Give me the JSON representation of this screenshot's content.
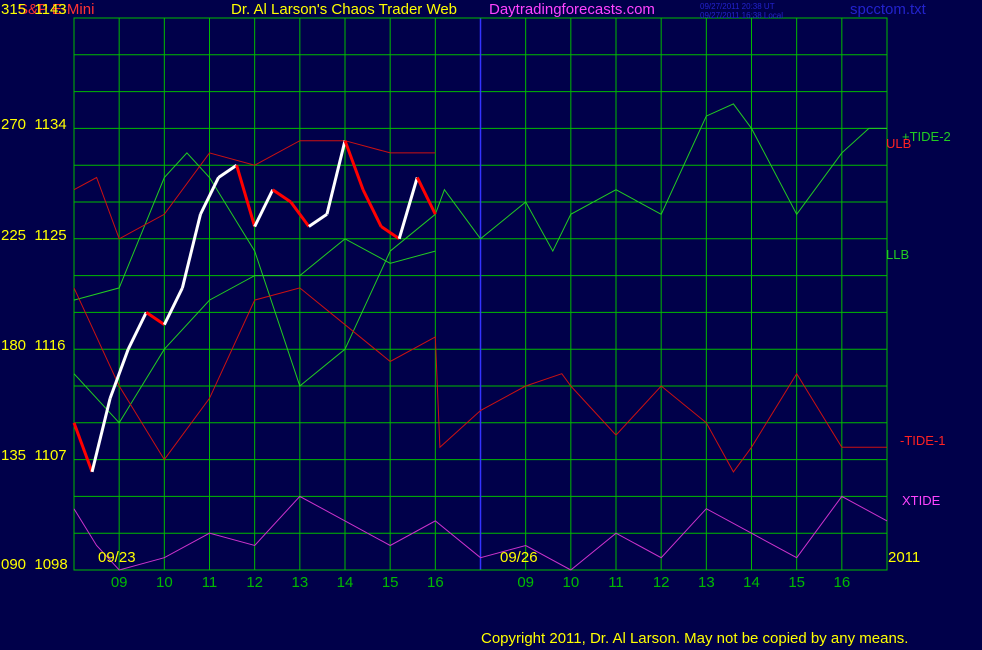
{
  "header": {
    "instrument": "S&P E-Mini",
    "title": "Dr. Al Larson's Chaos Trader Web",
    "site": "Daytradingforecasts.com",
    "utc_stamp": "09/27/2011 20:38 UT",
    "local_stamp": "09/27/2011 16:38 Local",
    "file": "spcctom.txt"
  },
  "y_axis": [
    {
      "tide": "315",
      "price": "1143"
    },
    {
      "tide": "270",
      "price": "1134"
    },
    {
      "tide": "225",
      "price": "1125"
    },
    {
      "tide": "180",
      "price": "1116"
    },
    {
      "tide": "135",
      "price": "1107"
    },
    {
      "tide": "090",
      "price": "1098"
    }
  ],
  "date_labels": {
    "first": "09/23",
    "second": "09/26",
    "year": "2011"
  },
  "right_labels": {
    "tide2": "+TIDE-2",
    "ulb": "ULB",
    "llb": "LLB",
    "tide1": "-TIDE-1",
    "xtide": "XTIDE"
  },
  "copyright": "Copyright 2011, Dr. Al Larson. May not be copied by any means.",
  "colors": {
    "background": "#00004a",
    "grid": "#00bb00",
    "tide2": "#22cc22",
    "ulb": "#cc1111",
    "llb": "#22cc22",
    "tide1": "#cc1111",
    "xtide": "#cc33cc",
    "price_up": "#ffffff",
    "price_down": "#ff0000",
    "avg": "#ffaa00",
    "mid": "#66ccff",
    "divider": "#3333ff"
  },
  "chart_data": {
    "type": "line",
    "x_ticks": [
      "09",
      "10",
      "11",
      "12",
      "13",
      "14",
      "15",
      "16",
      "09",
      "10",
      "11",
      "12",
      "13",
      "14",
      "15",
      "16"
    ],
    "ylim": [
      1098,
      1143
    ],
    "y_ticks_price": [
      1098,
      1107,
      1116,
      1125,
      1134,
      1143
    ],
    "y_ticks_tide": [
      "090",
      "135",
      "180",
      "225",
      "270",
      "315"
    ],
    "hours": [
      8,
      9,
      10,
      11,
      12,
      13,
      14,
      15,
      16,
      17,
      18,
      19,
      20,
      21,
      22,
      23,
      24,
      25,
      26,
      27,
      28,
      29,
      30,
      31,
      32,
      33,
      34,
      35,
      36,
      37,
      38,
      39,
      40,
      41,
      42,
      43,
      44,
      45,
      46,
      47,
      48,
      49,
      50,
      51,
      52,
      53,
      54,
      55,
      56,
      57,
      58,
      59,
      60,
      61,
      62,
      63,
      64,
      65,
      66,
      67,
      68,
      69,
      70,
      71,
      72,
      73,
      74,
      75,
      76,
      77,
      78,
      79,
      80,
      81,
      82,
      83,
      84,
      85,
      86,
      87,
      88,
      89,
      90,
      91,
      92,
      93,
      94,
      95,
      96,
      97,
      98,
      99,
      100,
      101,
      102,
      103,
      104,
      105,
      106,
      107,
      108,
      109,
      110,
      111,
      112,
      113,
      114,
      115,
      116,
      117,
      118,
      119,
      120,
      121,
      122,
      123,
      124,
      125,
      126,
      127,
      128,
      129,
      130,
      131,
      132,
      133,
      134,
      135,
      136,
      137,
      138,
      139,
      140,
      141,
      142,
      143,
      144,
      145,
      146,
      147,
      148,
      149,
      150,
      151,
      152,
      153,
      154,
      155,
      156,
      157,
      158,
      159,
      160,
      161,
      162,
      163,
      164
    ],
    "price": [
      [
        8,
        1110
      ],
      [
        8.4,
        1106
      ],
      [
        8.8,
        1112
      ],
      [
        9.2,
        1116
      ],
      [
        9.6,
        1119
      ],
      [
        10,
        1118
      ],
      [
        10.4,
        1121
      ],
      [
        10.8,
        1127
      ],
      [
        11.2,
        1130
      ],
      [
        11.6,
        1131
      ],
      [
        12,
        1126
      ],
      [
        12.4,
        1129
      ],
      [
        12.8,
        1128
      ],
      [
        13.2,
        1126
      ],
      [
        13.6,
        1127
      ],
      [
        14,
        1133
      ],
      [
        14.4,
        1129
      ],
      [
        14.8,
        1126
      ],
      [
        15.2,
        1125
      ],
      [
        15.6,
        1130
      ],
      [
        16,
        1127
      ]
    ],
    "series": [
      {
        "name": "+TIDE-2",
        "color_key": "tide2",
        "points": [
          [
            8,
            1120
          ],
          [
            9,
            1121
          ],
          [
            10,
            1130
          ],
          [
            10.5,
            1132
          ],
          [
            11,
            1130
          ],
          [
            12,
            1124
          ],
          [
            13,
            1113
          ],
          [
            14,
            1116
          ],
          [
            15,
            1124
          ],
          [
            16,
            1127
          ],
          [
            16.2,
            1129
          ],
          [
            17,
            1125
          ],
          [
            18,
            1128
          ],
          [
            18.6,
            1124
          ],
          [
            19,
            1127
          ],
          [
            20,
            1129
          ],
          [
            21,
            1127
          ],
          [
            22,
            1135
          ],
          [
            22.6,
            1136
          ],
          [
            23,
            1134
          ],
          [
            24,
            1127
          ],
          [
            25,
            1132
          ],
          [
            25.6,
            1134
          ],
          [
            26,
            1134
          ]
        ]
      },
      {
        "name": "ULB",
        "color_key": "ulb",
        "points": [
          [
            8,
            1129
          ],
          [
            8.5,
            1130
          ],
          [
            9,
            1125
          ],
          [
            10,
            1127
          ],
          [
            11,
            1132
          ],
          [
            12,
            1131
          ],
          [
            13,
            1133
          ],
          [
            14,
            1133
          ],
          [
            15,
            1132
          ],
          [
            16,
            1132
          ]
        ]
      },
      {
        "name": "LLB",
        "color_key": "llb",
        "points": [
          [
            8,
            1114
          ],
          [
            9,
            1110
          ],
          [
            10,
            1116
          ],
          [
            11,
            1120
          ],
          [
            12,
            1122
          ],
          [
            13,
            1122
          ],
          [
            14,
            1125
          ],
          [
            15,
            1123
          ],
          [
            16,
            1124
          ]
        ]
      },
      {
        "name": "-TIDE-1",
        "color_key": "tide1",
        "points": [
          [
            8,
            1121
          ],
          [
            9,
            1113
          ],
          [
            10,
            1107
          ],
          [
            11,
            1112
          ],
          [
            12,
            1120
          ],
          [
            13,
            1121
          ],
          [
            14,
            1118
          ],
          [
            15,
            1115
          ],
          [
            16,
            1117
          ],
          [
            16.1,
            1108
          ],
          [
            17,
            1111
          ],
          [
            18,
            1113
          ],
          [
            18.8,
            1114
          ],
          [
            19,
            1113
          ],
          [
            20,
            1109
          ],
          [
            21,
            1113
          ],
          [
            22,
            1110
          ],
          [
            22.6,
            1106
          ],
          [
            23,
            1108
          ],
          [
            24,
            1114
          ],
          [
            25,
            1108
          ],
          [
            25.6,
            1108
          ],
          [
            26,
            1108
          ]
        ]
      },
      {
        "name": "XTIDE",
        "color_key": "xtide",
        "points": [
          [
            8,
            1103
          ],
          [
            8.5,
            1100
          ],
          [
            9,
            1098
          ],
          [
            10,
            1099
          ],
          [
            11,
            1101
          ],
          [
            12,
            1100
          ],
          [
            13,
            1104
          ],
          [
            14,
            1102
          ],
          [
            15,
            1100
          ],
          [
            16,
            1102
          ],
          [
            17,
            1099
          ],
          [
            18,
            1100
          ],
          [
            19,
            1098
          ],
          [
            20,
            1101
          ],
          [
            21,
            1099
          ],
          [
            22,
            1103
          ],
          [
            23,
            1101
          ],
          [
            24,
            1099
          ],
          [
            25,
            1104
          ],
          [
            26,
            1102
          ]
        ]
      }
    ]
  }
}
